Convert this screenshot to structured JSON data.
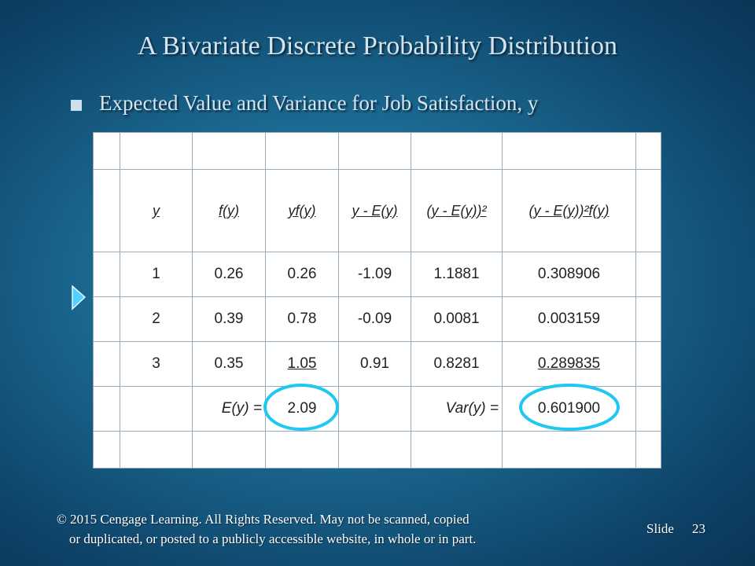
{
  "title": "A Bivariate Discrete  Probability Distribution",
  "bullet": "Expected Value and Variance for Job Satisfaction, y",
  "table": {
    "header": [
      "y",
      "f(y)",
      "yf(y)",
      "y - E(y)",
      "(y - E(y))²",
      "(y - E(y))²f(y)"
    ],
    "rows": [
      [
        "1",
        "0.26",
        "0.26",
        "-1.09",
        "1.1881",
        "0.308906"
      ],
      [
        "2",
        "0.39",
        "0.78",
        "-0.09",
        "0.0081",
        "0.003159"
      ],
      [
        "3",
        "0.35",
        "1.05",
        "0.91",
        "0.8281",
        "0.289835"
      ]
    ],
    "summary": {
      "ey_label": "E(y) =",
      "ey_value": "2.09",
      "var_label": "Var(y) =",
      "var_value": "0.601900"
    }
  },
  "footer": {
    "line1": "© 2015  Cengage Learning.  All Rights Reserved.  May not be scanned, copied",
    "line2": "or duplicated, or posted to a publicly accessible website, in whole or in part.",
    "slide_label": "Slide",
    "slide_number": "23"
  }
}
